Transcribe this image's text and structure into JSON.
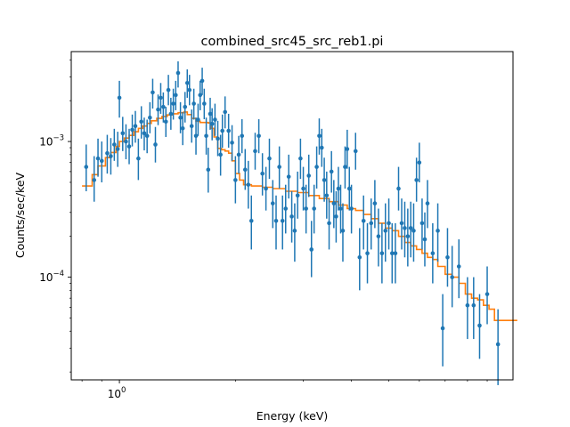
{
  "chart_data": {
    "type": "scatter",
    "title": "combined_src45_src_reb1.pi",
    "xlabel": "Energy (keV)",
    "ylabel": "Counts/sec/keV",
    "xscale": "log",
    "yscale": "log",
    "xlim": [
      0.75,
      10.5
    ],
    "ylim": [
      1.75e-05,
      0.0046
    ],
    "x_ticks": [
      {
        "value": 1,
        "label": "10",
        "exp": "0"
      }
    ],
    "y_ticks": [
      {
        "value": 0.0001,
        "label": "10",
        "exp": "−4"
      },
      {
        "value": 0.001,
        "label": "10",
        "exp": "−3"
      }
    ],
    "grid": false,
    "colors": {
      "data": "#1f77b4",
      "model": "#ff7f0e"
    },
    "series": [
      {
        "type": "errorbar-scatter",
        "points": [
          [
            0.82,
            0.00065,
            0.00043,
            0.00095
          ],
          [
            0.86,
            0.00052,
            0.00036,
            0.00078
          ],
          [
            0.88,
            0.00075,
            0.00055,
            0.00105
          ],
          [
            0.9,
            0.00072,
            0.0005,
            0.001
          ],
          [
            0.93,
            0.00082,
            0.00058,
            0.00112
          ],
          [
            0.95,
            0.00078,
            0.00057,
            0.00106
          ],
          [
            0.97,
            0.00095,
            0.00072,
            0.00124
          ],
          [
            0.99,
            0.00088,
            0.00065,
            0.00118
          ],
          [
            1.0,
            0.0021,
            0.0015,
            0.0028
          ],
          [
            1.02,
            0.00115,
            0.00085,
            0.00152
          ],
          [
            1.04,
            0.001,
            0.00074,
            0.00134
          ],
          [
            1.06,
            0.00092,
            0.00068,
            0.00124
          ],
          [
            1.08,
            0.00122,
            0.00092,
            0.00158
          ],
          [
            1.1,
            0.0013,
            0.00098,
            0.00168
          ],
          [
            1.12,
            0.00075,
            0.00052,
            0.00105
          ],
          [
            1.14,
            0.0014,
            0.00105,
            0.00182
          ],
          [
            1.16,
            0.00115,
            0.00086,
            0.0015
          ],
          [
            1.18,
            0.0011,
            0.00082,
            0.00145
          ],
          [
            1.2,
            0.0015,
            0.00115,
            0.00195
          ],
          [
            1.22,
            0.0023,
            0.00175,
            0.0029
          ],
          [
            1.24,
            0.00095,
            0.0007,
            0.00128
          ],
          [
            1.26,
            0.00172,
            0.00132,
            0.00222
          ],
          [
            1.28,
            0.0021,
            0.0016,
            0.0027
          ],
          [
            1.3,
            0.0018,
            0.00138,
            0.0023
          ],
          [
            1.32,
            0.0014,
            0.00108,
            0.0018
          ],
          [
            1.34,
            0.0024,
            0.00185,
            0.0031
          ],
          [
            1.36,
            0.0016,
            0.00122,
            0.0021
          ],
          [
            1.38,
            0.0019,
            0.00145,
            0.00245
          ],
          [
            1.4,
            0.0022,
            0.0017,
            0.0028
          ],
          [
            1.42,
            0.0032,
            0.0025,
            0.0039
          ],
          [
            1.44,
            0.0015,
            0.00115,
            0.00195
          ],
          [
            1.46,
            0.00125,
            0.00094,
            0.00165
          ],
          [
            1.48,
            0.0018,
            0.00138,
            0.00232
          ],
          [
            1.5,
            0.0027,
            0.0021,
            0.0034
          ],
          [
            1.52,
            0.0024,
            0.00185,
            0.0031
          ],
          [
            1.54,
            0.0013,
            0.00098,
            0.00172
          ],
          [
            1.56,
            0.0019,
            0.00145,
            0.00245
          ],
          [
            1.58,
            0.0011,
            0.0008,
            0.0015
          ],
          [
            1.6,
            0.00145,
            0.0011,
            0.0019
          ],
          [
            1.62,
            0.0022,
            0.0017,
            0.0028
          ],
          [
            1.64,
            0.0028,
            0.0022,
            0.0035
          ],
          [
            1.66,
            0.0019,
            0.00146,
            0.00245
          ],
          [
            1.68,
            0.0011,
            0.0008,
            0.0015
          ],
          [
            1.7,
            0.00062,
            0.00042,
            0.0009
          ],
          [
            1.72,
            0.0016,
            0.00122,
            0.0021
          ],
          [
            1.74,
            0.00135,
            0.00102,
            0.00176
          ],
          [
            1.77,
            0.00145,
            0.0011,
            0.0019
          ],
          [
            1.8,
            0.00105,
            0.00078,
            0.00142
          ],
          [
            1.83,
            0.0008,
            0.00056,
            0.00112
          ],
          [
            1.85,
            0.0012,
            0.0009,
            0.00158
          ],
          [
            1.88,
            0.00165,
            0.00125,
            0.00215
          ],
          [
            1.92,
            0.0012,
            0.0009,
            0.0016
          ],
          [
            1.96,
            0.00098,
            0.00072,
            0.00132
          ],
          [
            2.0,
            0.00052,
            0.00035,
            0.00078
          ],
          [
            2.04,
            0.0008,
            0.00058,
            0.0011
          ],
          [
            2.08,
            0.0011,
            0.00082,
            0.00146
          ],
          [
            2.12,
            0.00062,
            0.00044,
            0.00088
          ],
          [
            2.16,
            0.00048,
            0.00032,
            0.00072
          ],
          [
            2.2,
            0.00026,
            0.00016,
            0.0004
          ],
          [
            2.25,
            0.00085,
            0.00062,
            0.00116
          ],
          [
            2.3,
            0.0011,
            0.00082,
            0.00146
          ],
          [
            2.35,
            0.00058,
            0.0004,
            0.00082
          ],
          [
            2.4,
            0.00045,
            0.00031,
            0.00065
          ],
          [
            2.45,
            0.00075,
            0.00053,
            0.00105
          ],
          [
            2.5,
            0.00035,
            0.00023,
            0.00052
          ],
          [
            2.55,
            0.00026,
            0.00016,
            0.0004
          ],
          [
            2.6,
            0.00065,
            0.00045,
            0.00092
          ],
          [
            2.65,
            0.00026,
            0.00016,
            0.0004
          ],
          [
            2.7,
            0.00032,
            0.00021,
            0.00048
          ],
          [
            2.75,
            0.00055,
            0.00038,
            0.0008
          ],
          [
            2.8,
            0.00028,
            0.00018,
            0.00043
          ],
          [
            2.85,
            0.00022,
            0.00013,
            0.00035
          ],
          [
            2.9,
            0.0004,
            0.00027,
            0.0006
          ],
          [
            2.95,
            0.00075,
            0.00053,
            0.00105
          ],
          [
            3.0,
            0.00045,
            0.00031,
            0.00065
          ],
          [
            3.05,
            0.00032,
            0.00021,
            0.00048
          ],
          [
            3.1,
            0.00056,
            0.00039,
            0.0008
          ],
          [
            3.15,
            0.00016,
            0.0001,
            0.00026
          ],
          [
            3.2,
            0.00032,
            0.00021,
            0.00048
          ],
          [
            3.25,
            0.00065,
            0.00045,
            0.00092
          ],
          [
            3.3,
            0.0011,
            0.0008,
            0.00148
          ],
          [
            3.35,
            0.0009,
            0.00065,
            0.00124
          ],
          [
            3.4,
            0.00052,
            0.00036,
            0.00076
          ],
          [
            3.45,
            0.0004,
            0.00027,
            0.0006
          ],
          [
            3.5,
            0.00025,
            0.00016,
            0.00038
          ],
          [
            3.55,
            0.0006,
            0.00042,
            0.00085
          ],
          [
            3.6,
            0.00035,
            0.00023,
            0.00052
          ],
          [
            3.65,
            0.00028,
            0.00018,
            0.00043
          ],
          [
            3.7,
            0.00045,
            0.00031,
            0.00065
          ],
          [
            3.75,
            0.00032,
            0.00021,
            0.00048
          ],
          [
            3.8,
            0.00022,
            0.00013,
            0.00035
          ],
          [
            3.85,
            0.00065,
            0.00045,
            0.00092
          ],
          [
            3.9,
            0.00088,
            0.00063,
            0.00122
          ],
          [
            3.95,
            0.00045,
            0.00031,
            0.00065
          ],
          [
            4.0,
            0.00032,
            0.00021,
            0.00048
          ],
          [
            4.1,
            0.00085,
            0.00062,
            0.00116
          ],
          [
            4.2,
            0.00014,
            8e-05,
            0.00023
          ],
          [
            4.3,
            0.00026,
            0.00016,
            0.0004
          ],
          [
            4.4,
            0.00015,
            9e-05,
            0.00025
          ],
          [
            4.5,
            0.00025,
            0.00016,
            0.00038
          ],
          [
            4.6,
            0.00035,
            0.00023,
            0.00052
          ],
          [
            4.7,
            0.0002,
            0.00012,
            0.00032
          ],
          [
            4.8,
            0.00015,
            9e-05,
            0.00025
          ],
          [
            4.9,
            0.00022,
            0.00013,
            0.00035
          ],
          [
            5.0,
            0.00025,
            0.00016,
            0.00038
          ],
          [
            5.1,
            0.00015,
            9e-05,
            0.00025
          ],
          [
            5.2,
            0.00015,
            9e-05,
            0.00025
          ],
          [
            5.3,
            0.00045,
            0.00031,
            0.00065
          ],
          [
            5.4,
            0.00025,
            0.00016,
            0.00038
          ],
          [
            5.5,
            0.00023,
            0.00014,
            0.00036
          ],
          [
            5.6,
            0.0002,
            0.00012,
            0.00032
          ],
          [
            5.7,
            0.00023,
            0.00014,
            0.00036
          ],
          [
            5.8,
            0.00022,
            0.00013,
            0.00035
          ],
          [
            5.9,
            0.00052,
            0.00036,
            0.00076
          ],
          [
            6.0,
            0.0007,
            0.0005,
            0.00098
          ],
          [
            6.1,
            0.00025,
            0.00016,
            0.00038
          ],
          [
            6.2,
            0.00019,
            0.00012,
            0.0003
          ],
          [
            6.3,
            0.00035,
            0.00023,
            0.00052
          ],
          [
            6.5,
            0.00015,
            9e-05,
            0.00025
          ],
          [
            6.7,
            0.00022,
            0.00013,
            0.00035
          ],
          [
            6.9,
            4.2e-05,
            2.2e-05,
            7.5e-05
          ],
          [
            7.1,
            0.00014,
            8.5e-05,
            0.00023
          ],
          [
            7.3,
            0.0001,
            6e-05,
            0.00017
          ],
          [
            7.6,
            0.00012,
            7e-05,
            0.00019
          ],
          [
            8.0,
            6.2e-05,
            3.5e-05,
            0.0001
          ],
          [
            8.3,
            6.2e-05,
            3.5e-05,
            0.0001
          ],
          [
            8.6,
            4.4e-05,
            2.5e-05,
            7.5e-05
          ],
          [
            9.0,
            7.5e-05,
            4.5e-05,
            0.00012
          ],
          [
            9.6,
            3.2e-05,
            1.6e-05,
            5.8e-05
          ]
        ]
      },
      {
        "type": "step-line",
        "points": [
          [
            0.8,
            0.00047
          ],
          [
            0.85,
            0.00057
          ],
          [
            0.88,
            0.00066
          ],
          [
            0.92,
            0.00076
          ],
          [
            0.95,
            0.00083
          ],
          [
            0.98,
            0.00092
          ],
          [
            1.0,
            0.001
          ],
          [
            1.03,
            0.00106
          ],
          [
            1.06,
            0.00111
          ],
          [
            1.09,
            0.00118
          ],
          [
            1.12,
            0.00125
          ],
          [
            1.15,
            0.0013
          ],
          [
            1.18,
            0.00136
          ],
          [
            1.21,
            0.00142
          ],
          [
            1.25,
            0.00148
          ],
          [
            1.29,
            0.00153
          ],
          [
            1.33,
            0.00157
          ],
          [
            1.37,
            0.0016
          ],
          [
            1.42,
            0.00163
          ],
          [
            1.47,
            0.00165
          ],
          [
            1.5,
            0.00158
          ],
          [
            1.54,
            0.00148
          ],
          [
            1.58,
            0.00141
          ],
          [
            1.62,
            0.00138
          ],
          [
            1.66,
            0.00138
          ],
          [
            1.7,
            0.00137
          ],
          [
            1.73,
            0.00125
          ],
          [
            1.76,
            0.00108
          ],
          [
            1.8,
            0.00089
          ],
          [
            1.84,
            0.00087
          ],
          [
            1.88,
            0.00085
          ],
          [
            1.92,
            0.00082
          ],
          [
            1.96,
            0.00072
          ],
          [
            2.0,
            0.00058
          ],
          [
            2.05,
            0.00052
          ],
          [
            2.1,
            0.00048
          ],
          [
            2.2,
            0.00047
          ],
          [
            2.35,
            0.00046
          ],
          [
            2.5,
            0.00045
          ],
          [
            2.7,
            0.00043
          ],
          [
            2.9,
            0.00042
          ],
          [
            3.1,
            0.0004
          ],
          [
            3.3,
            0.00038
          ],
          [
            3.5,
            0.00036
          ],
          [
            3.7,
            0.00034
          ],
          [
            3.9,
            0.00032
          ],
          [
            4.1,
            0.00031
          ],
          [
            4.3,
            0.00029
          ],
          [
            4.5,
            0.00027
          ],
          [
            4.7,
            0.00025
          ],
          [
            4.9,
            0.00023
          ],
          [
            5.1,
            0.00022
          ],
          [
            5.3,
            0.0002
          ],
          [
            5.5,
            0.00018
          ],
          [
            5.7,
            0.00017
          ],
          [
            5.9,
            0.00016
          ],
          [
            6.1,
            0.00015
          ],
          [
            6.3,
            0.00014
          ],
          [
            6.5,
            0.000135
          ],
          [
            6.7,
            0.00012
          ],
          [
            7.0,
            0.000105
          ],
          [
            7.3,
            0.0001
          ],
          [
            7.6,
            9e-05
          ],
          [
            7.9,
            7.5e-05
          ],
          [
            8.2,
            7e-05
          ],
          [
            8.5,
            6.8e-05
          ],
          [
            8.8,
            6.2e-05
          ],
          [
            9.1,
            5.8e-05
          ],
          [
            9.4,
            4.8e-05
          ],
          [
            10.0,
            4.8e-05
          ]
        ]
      }
    ]
  }
}
